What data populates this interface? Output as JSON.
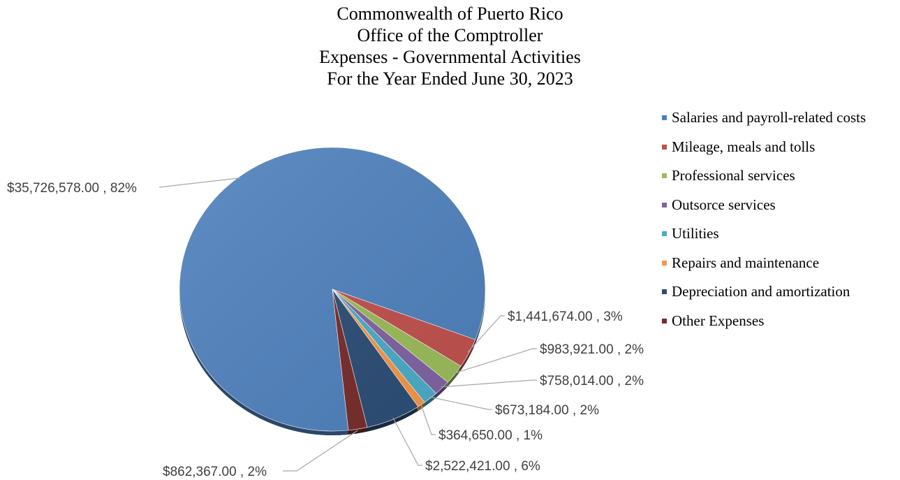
{
  "chart_data": {
    "type": "pie",
    "title_lines": [
      "Commonwealth of Puerto Rico",
      "Office of the Comptroller",
      "Expenses - Governmental Activities",
      "For the Year Ended June 30, 2023"
    ],
    "legend_position": "right",
    "slices": [
      {
        "name": "Salaries and payroll-related costs",
        "value": 35726578.0,
        "percent": 82,
        "label": "$35,726,578.00 , 82%",
        "color": "#4F81BD"
      },
      {
        "name": "Mileage, meals and tolls",
        "value": 1441674.0,
        "percent": 3,
        "label": "$1,441,674.00 , 3%",
        "color": "#C0504D"
      },
      {
        "name": "Professional services",
        "value": 983921.0,
        "percent": 2,
        "label": "$983,921.00 , 2%",
        "color": "#9BBB59"
      },
      {
        "name": "Outsorce services",
        "value": 758014.0,
        "percent": 2,
        "label": "$758,014.00 , 2%",
        "color": "#8064A2"
      },
      {
        "name": "Utilities",
        "value": 673184.0,
        "percent": 2,
        "label": "$673,184.00 , 2%",
        "color": "#4BACC6"
      },
      {
        "name": "Repairs and maintenance",
        "value": 364650.0,
        "percent": 1,
        "label": "$364,650.00 , 1%",
        "color": "#F79646"
      },
      {
        "name": "Depreciation and amortization",
        "value": 2522421.0,
        "percent": 6,
        "label": "$2,522,421.00 , 6%",
        "color": "#2C4D75"
      },
      {
        "name": "Other Expenses",
        "value": 862367.0,
        "percent": 2,
        "label": "$862,367.00 , 2%",
        "color": "#772C2A"
      }
    ]
  }
}
